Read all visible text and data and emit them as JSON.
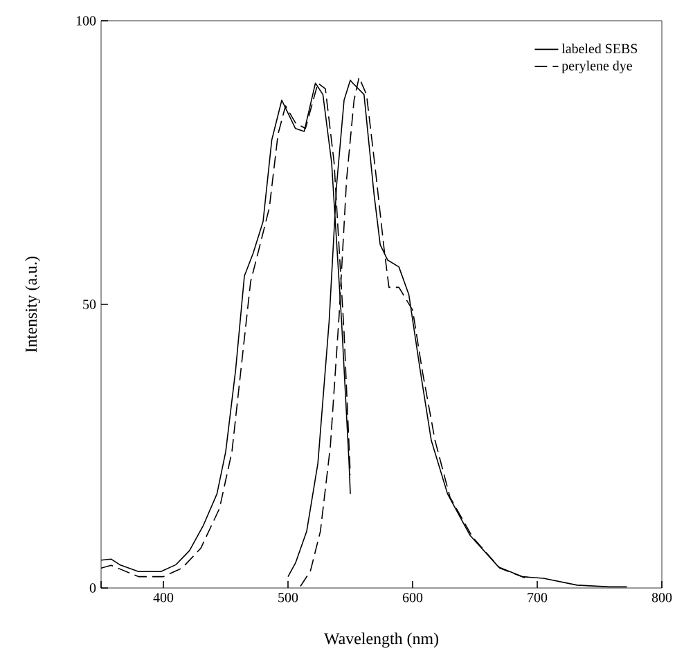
{
  "chart_data": {
    "type": "line",
    "xlabel": "Wavelength (nm)",
    "ylabel": "Intensity (a.u.)",
    "xlim": [
      350,
      800
    ],
    "ylim": [
      0,
      100
    ],
    "xticks": [
      {
        "value": 350,
        "label": null
      },
      400,
      500,
      600,
      700,
      800
    ],
    "yticks": [
      0,
      50,
      100
    ],
    "legend": "top right",
    "grid": false,
    "marker": "none",
    "series": [
      {
        "name": "labeled SEBS",
        "color": "#000000",
        "line_style": "solid",
        "x": [
          350,
          358,
          365,
          380,
          398,
          410,
          421,
          432,
          443,
          450,
          458,
          465,
          472,
          480,
          487,
          495,
          506,
          513,
          522,
          528,
          535,
          543,
          549,
          550,
          null,
          500,
          506,
          515,
          524,
          533,
          539,
          545,
          550,
          552,
          561,
          569,
          574,
          580,
          589,
          597,
          606,
          615,
          628,
          646,
          669,
          688,
          705,
          732,
          758,
          772
        ],
        "values": [
          4.9,
          5.1,
          4.1,
          2.9,
          2.9,
          4.1,
          6.6,
          11,
          16.6,
          24,
          38.5,
          55,
          59,
          64.6,
          79,
          86,
          81,
          80.5,
          89,
          87,
          75,
          47,
          22,
          16.6,
          null,
          2,
          4.4,
          10,
          22,
          47,
          71,
          86,
          89.5,
          89,
          87,
          69.5,
          60.5,
          57.8,
          56.6,
          51.7,
          38.5,
          26,
          16.6,
          9.3,
          3.7,
          2,
          1.7,
          0.5,
          0.2,
          0.2
        ]
      },
      {
        "name": "perylene dye",
        "color": "#000000",
        "line_style": "dashed",
        "x": [
          350,
          358,
          380,
          400,
          415,
          430,
          445,
          455,
          462,
          470,
          477,
          485,
          492,
          498,
          506,
          514,
          524,
          530,
          537,
          545,
          550,
          null,
          510,
          518,
          526,
          534,
          541,
          547,
          553,
          557,
          563,
          570,
          577,
          581,
          589,
          600,
          608,
          618,
          630,
          648,
          670,
          690
        ],
        "values": [
          3.5,
          4,
          2,
          2,
          3.5,
          7,
          14,
          24,
          38,
          54,
          60,
          67,
          80,
          85,
          82,
          81,
          89,
          88,
          75,
          45,
          20,
          null,
          0.3,
          3,
          10,
          25,
          48,
          72,
          86,
          90,
          87,
          74,
          60,
          53,
          53,
          49,
          38,
          26,
          16,
          9,
          3.5,
          1.8
        ]
      }
    ]
  }
}
